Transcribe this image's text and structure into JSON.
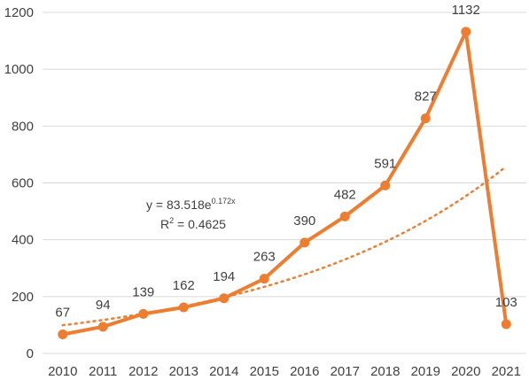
{
  "chart_data": {
    "type": "line",
    "categories": [
      "2010",
      "2011",
      "2012",
      "2013",
      "2014",
      "2015",
      "2016",
      "2017",
      "2018",
      "2019",
      "2020",
      "2021"
    ],
    "series": [
      {
        "values": [
          67,
          94,
          139,
          162,
          194,
          263,
          390,
          482,
          591,
          827,
          1132,
          103
        ],
        "color": "#ed7d31"
      }
    ],
    "trendline": {
      "type": "exponential",
      "a": 83.518,
      "b": 0.172,
      "equation": "y = 83.518e",
      "exponent": "0.172x",
      "r2_prefix": "R",
      "r2_power": "2",
      "r2_value": " = 0.4625",
      "color": "#ed7d31"
    },
    "ylim": [
      0,
      1200
    ],
    "yticks": [
      0,
      200,
      400,
      600,
      800,
      1000,
      1200
    ],
    "grid": true,
    "legend": "none"
  }
}
